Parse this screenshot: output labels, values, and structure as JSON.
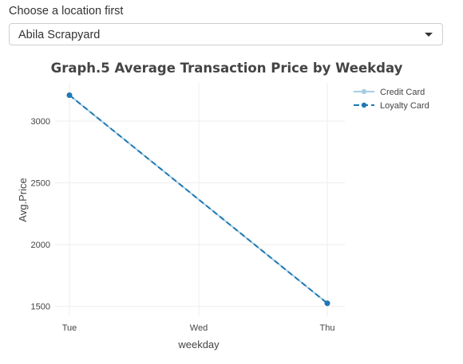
{
  "location_selector": {
    "label": "Choose a location first",
    "selected": "Abila Scrapyard"
  },
  "colors": {
    "credit_card": "#a6cee3",
    "loyalty_card": "#1f78b4",
    "grid": "#eeeeee"
  },
  "chart_data": {
    "type": "line",
    "title": "Graph.5 Average Transaction Price by Weekday",
    "xlabel": "weekday",
    "ylabel": "Avg.Price",
    "categories": [
      "Tue",
      "Wed",
      "Thu"
    ],
    "yticks": [
      1500,
      2000,
      2500,
      3000
    ],
    "ylim": [
      1420,
      3310
    ],
    "grid": true,
    "legend_position": "top-right",
    "series": [
      {
        "name": "Credit Card",
        "x": [
          "Tue",
          "Thu"
        ],
        "values": [
          3210,
          1525
        ],
        "style": "solid"
      },
      {
        "name": "Loyalty Card",
        "x": [
          "Tue",
          "Thu"
        ],
        "values": [
          3210,
          1525
        ],
        "style": "dashed"
      }
    ]
  }
}
